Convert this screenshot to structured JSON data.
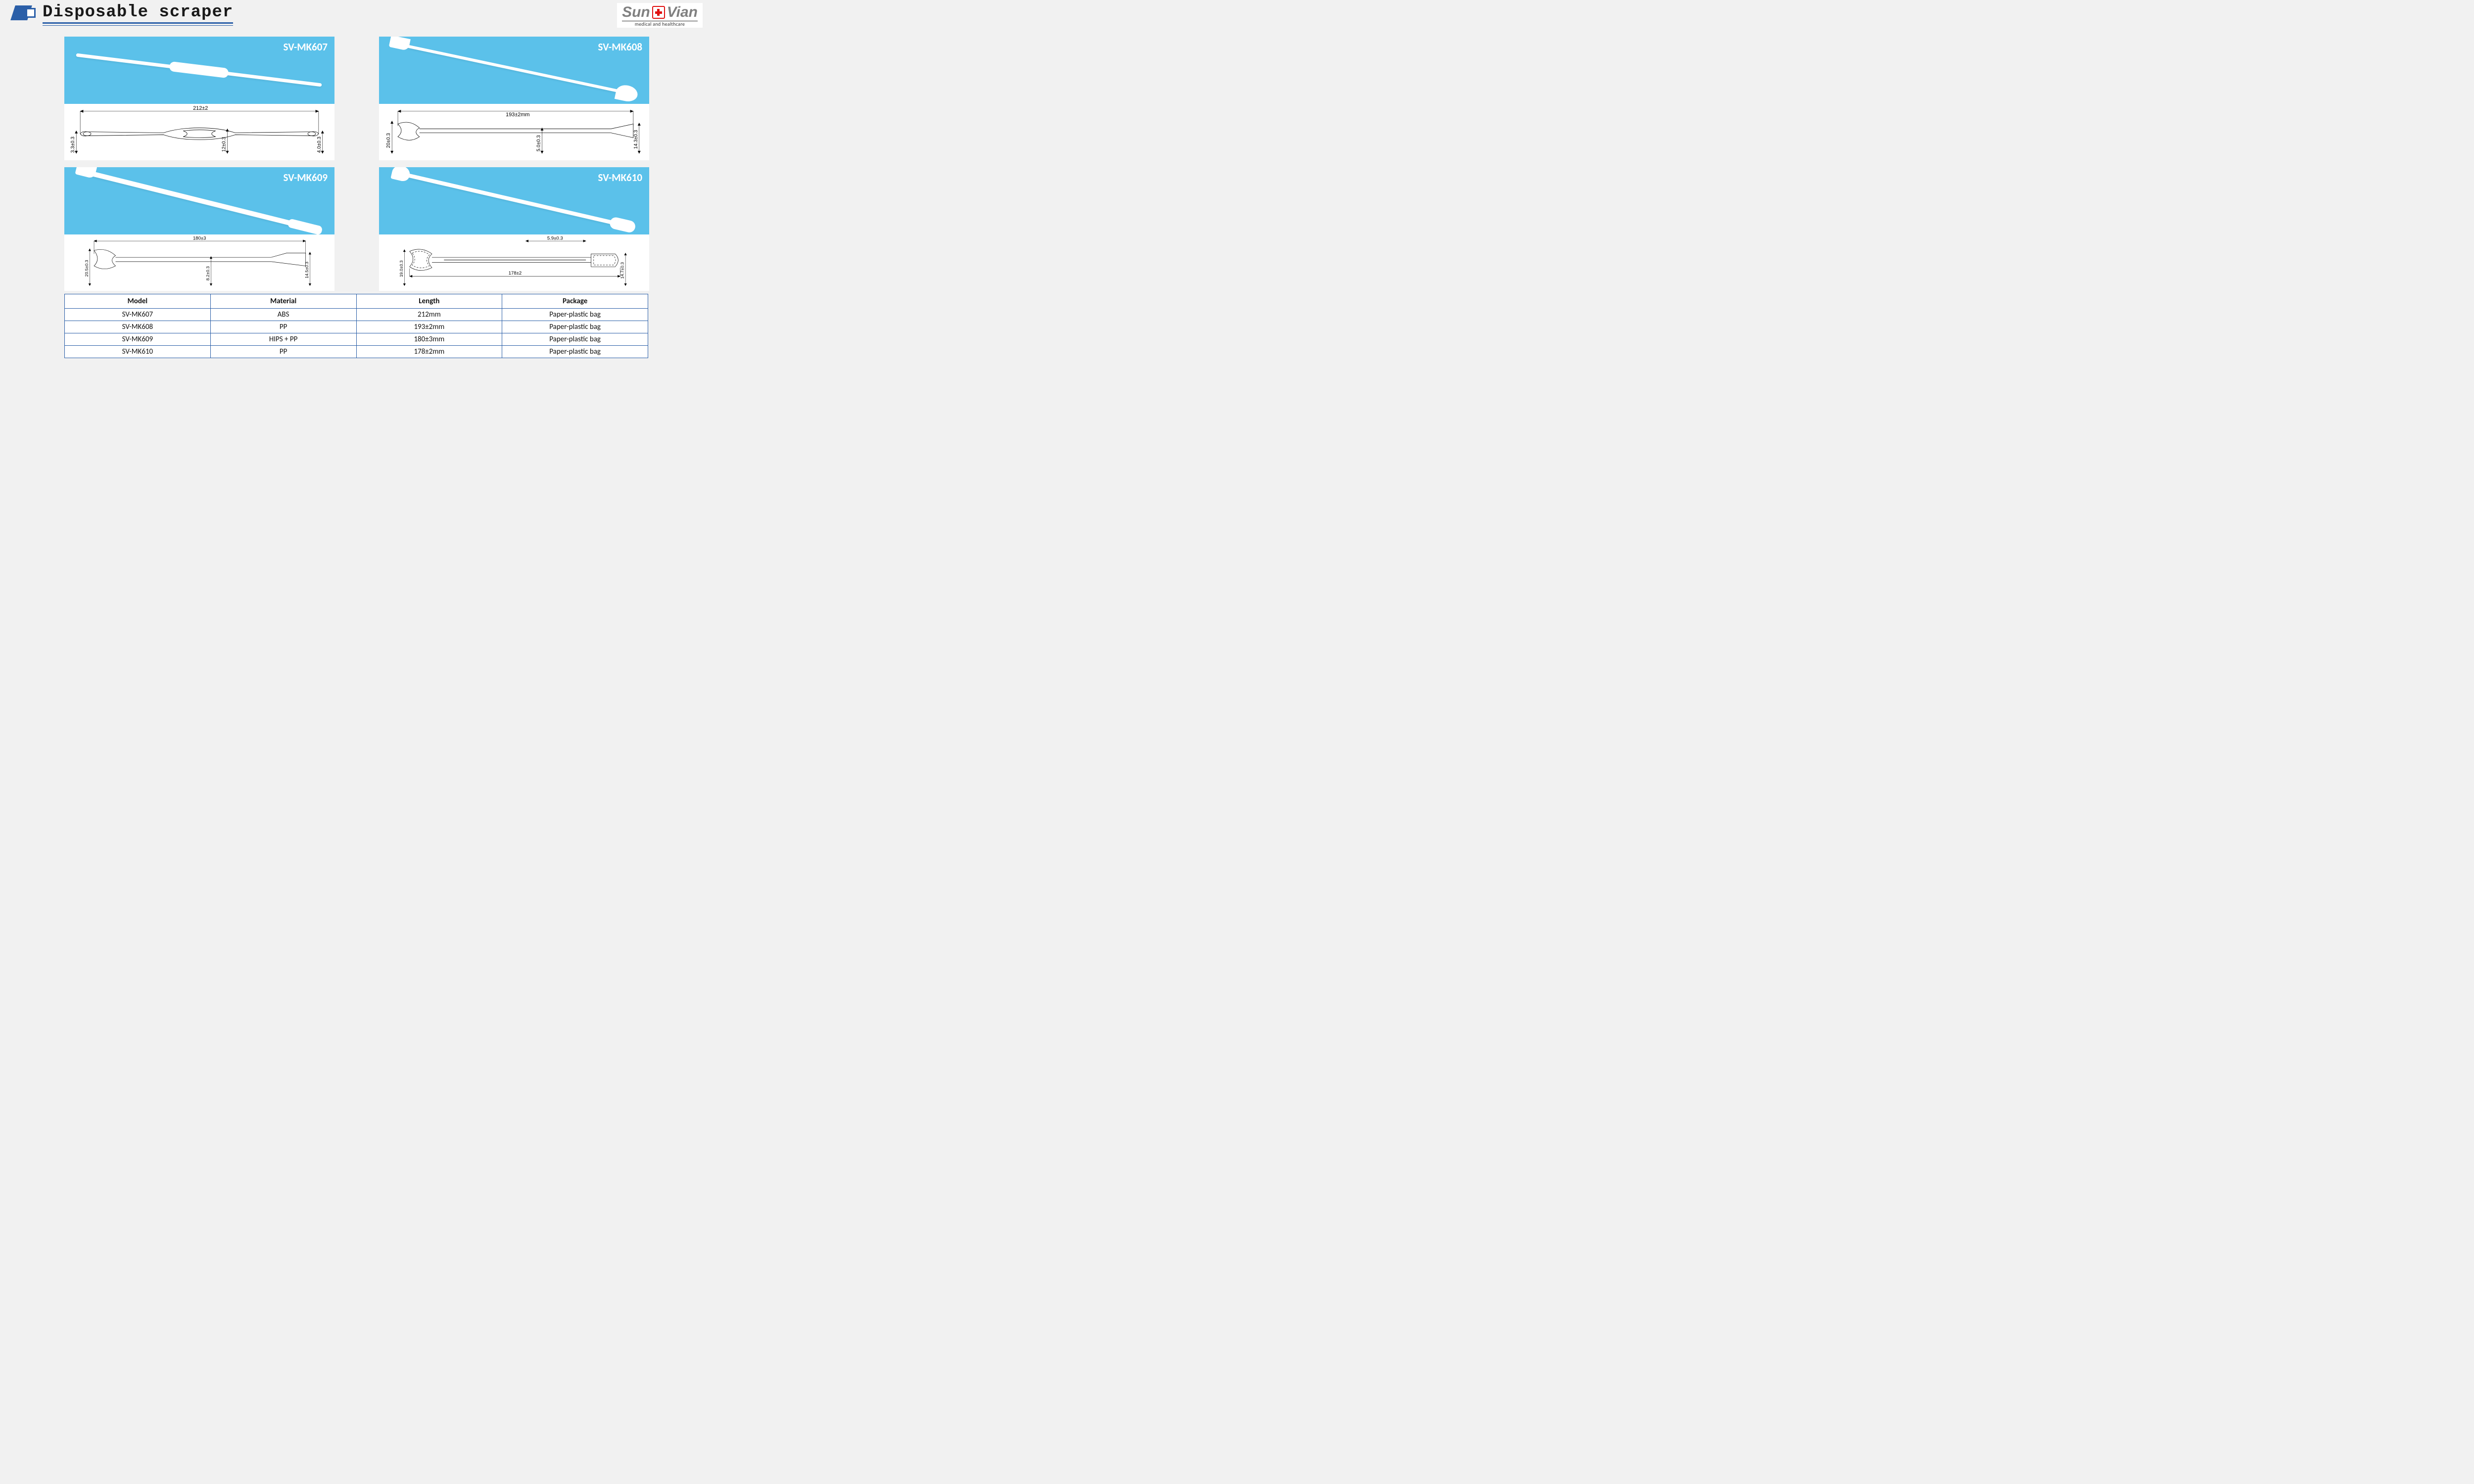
{
  "page": {
    "title": "Disposable scraper",
    "background_color": "#f1f1f1"
  },
  "logo": {
    "line1_left": "Sun",
    "line1_right": "Vian",
    "subtitle": "medical and healthcare",
    "text_color": "#808080",
    "accent_color": "#e01010"
  },
  "accent_color": "#2b5fa8",
  "photo_bg": "#5bc1ea",
  "products": [
    {
      "sku": "SV-MK607",
      "photo_class": "p607",
      "dims": {
        "length": "212±2",
        "left_h": "3.3±0.3",
        "mid_h": "12±0.3",
        "right_h": "4.0±0.3"
      }
    },
    {
      "sku": "SV-MK608",
      "photo_class": "p608",
      "dims": {
        "length": "193±2mm",
        "left_h": "20±0.3",
        "mid_h": "5.0±0.3",
        "right_h": "14.3±0.3"
      }
    },
    {
      "sku": "SV-MK609",
      "photo_class": "p609",
      "dims": {
        "length": "180±3",
        "left_h": "20.5±0.3",
        "mid_h": "8.2±0.3",
        "right_h": "14.5±0.3"
      }
    },
    {
      "sku": "SV-MK610",
      "photo_class": "p610",
      "dims": {
        "length": "178±2",
        "top_w": "5.9±0.3",
        "left_h": "19.0±0.3",
        "right_h": "14.7±0.3"
      }
    }
  ],
  "table": {
    "columns": [
      "Model",
      "Material",
      "Length",
      "Package"
    ],
    "rows": [
      [
        "SV-MK607",
        "ABS",
        "212mm",
        "Paper-plastic bag"
      ],
      [
        "SV-MK608",
        "PP",
        "193±2mm",
        "Paper-plastic bag"
      ],
      [
        "SV-MK609",
        "HIPS + PP",
        "180±3mm",
        "Paper-plastic bag"
      ],
      [
        "SV-MK610",
        "PP",
        "178±2mm",
        "Paper-plastic bag"
      ]
    ],
    "border_color": "#2b5fa8",
    "header_fontweight": 700,
    "cell_fontsize": 15
  }
}
